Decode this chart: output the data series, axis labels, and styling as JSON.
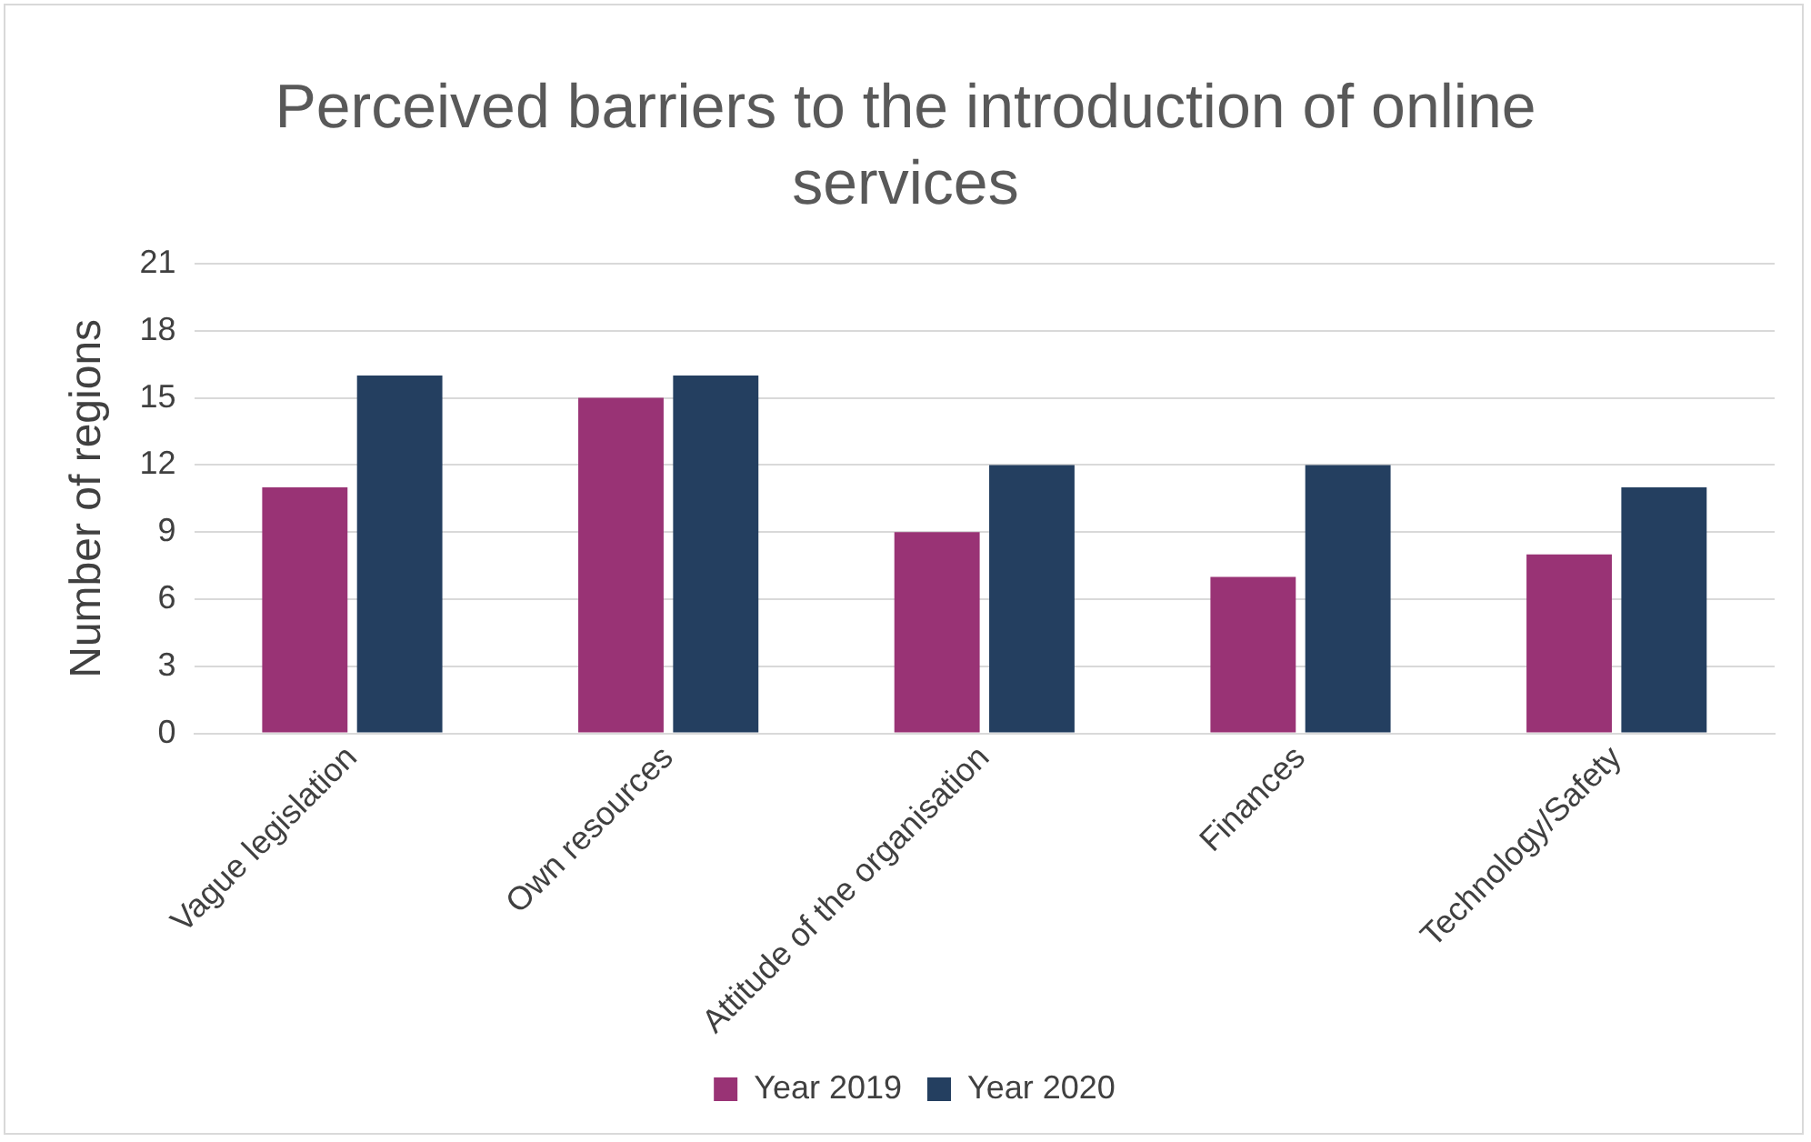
{
  "chart_data": {
    "type": "bar",
    "title": "Perceived barriers to the introduction of online services",
    "ylabel": "Number of regions",
    "categories": [
      "Vague legislation",
      "Own resources",
      "Attitude of the organisation",
      "Finances",
      "Technology/Safety"
    ],
    "series": [
      {
        "name": "Year 2019",
        "color": "#993375",
        "values": [
          11,
          15,
          9,
          7,
          8
        ]
      },
      {
        "name": "Year 2020",
        "color": "#243f60",
        "values": [
          16,
          16,
          12,
          12,
          11
        ]
      }
    ],
    "ylim": [
      0,
      21
    ],
    "yticks": [
      0,
      3,
      6,
      9,
      12,
      15,
      18,
      21
    ],
    "grid": "y",
    "legend": "bottom"
  }
}
